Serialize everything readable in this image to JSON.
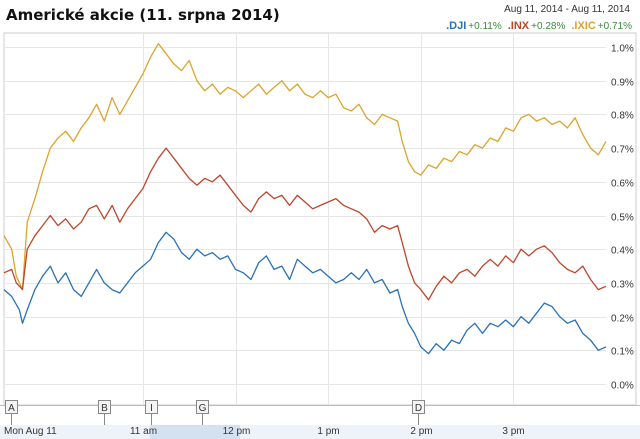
{
  "header": {
    "title": "Americké akcie (11. srpna 2014)",
    "range_start": "Aug 11, 2014",
    "range_sep": "-",
    "range_end": "Aug 11, 2014"
  },
  "chart_data": {
    "type": "line",
    "title": "Americké akcie (11. srpna 2014)",
    "xlabel": "",
    "ylabel": "",
    "x_unit": "minutes after 9:30 am",
    "xlim": [
      0,
      390
    ],
    "ylim": [
      0,
      1.0
    ],
    "grid": true,
    "legend_placement": "top-right",
    "y_ticks": [
      0.0,
      0.1,
      0.2,
      0.3,
      0.4,
      0.5,
      0.6,
      0.7,
      0.8,
      0.9,
      1.0
    ],
    "y_tick_labels": [
      "0.0%",
      "0.1%",
      "0.2%",
      "0.3%",
      "0.4%",
      "0.5%",
      "0.6%",
      "0.7%",
      "0.8%",
      "0.9%",
      "1.0%"
    ],
    "x_ticks": [
      0,
      90,
      150,
      210,
      270,
      330
    ],
    "x_tick_labels": [
      "Mon Aug 11",
      "11 am",
      "12 pm",
      "1 pm",
      "2 pm",
      "3 pm"
    ],
    "event_markers": [
      {
        "label": "A",
        "x": 0
      },
      {
        "label": "B",
        "x": 65
      },
      {
        "label": "I",
        "x": 95
      },
      {
        "label": "G",
        "x": 128
      },
      {
        "label": "D",
        "x": 268
      }
    ],
    "series": [
      {
        "name": ".DJI",
        "change": "+0.11%",
        "color": "#2a72b5",
        "x": [
          0,
          5,
          10,
          12,
          15,
          20,
          25,
          30,
          35,
          40,
          45,
          50,
          55,
          60,
          65,
          70,
          75,
          80,
          85,
          90,
          95,
          100,
          105,
          110,
          115,
          120,
          125,
          130,
          135,
          140,
          145,
          150,
          155,
          160,
          165,
          170,
          175,
          180,
          185,
          190,
          195,
          200,
          205,
          210,
          215,
          220,
          225,
          230,
          235,
          240,
          245,
          250,
          255,
          258,
          262,
          266,
          270,
          275,
          280,
          285,
          290,
          295,
          300,
          305,
          310,
          315,
          320,
          325,
          330,
          335,
          340,
          345,
          350,
          355,
          360,
          365,
          370,
          375,
          380,
          385,
          390
        ],
        "values": [
          0.28,
          0.26,
          0.22,
          0.18,
          0.22,
          0.28,
          0.32,
          0.35,
          0.3,
          0.33,
          0.28,
          0.26,
          0.3,
          0.34,
          0.3,
          0.28,
          0.27,
          0.3,
          0.33,
          0.35,
          0.37,
          0.42,
          0.45,
          0.43,
          0.39,
          0.37,
          0.4,
          0.38,
          0.39,
          0.37,
          0.38,
          0.34,
          0.33,
          0.31,
          0.36,
          0.38,
          0.34,
          0.35,
          0.31,
          0.37,
          0.35,
          0.33,
          0.34,
          0.32,
          0.3,
          0.31,
          0.33,
          0.31,
          0.34,
          0.3,
          0.31,
          0.27,
          0.28,
          0.23,
          0.18,
          0.15,
          0.11,
          0.09,
          0.12,
          0.1,
          0.13,
          0.12,
          0.16,
          0.18,
          0.15,
          0.18,
          0.17,
          0.19,
          0.17,
          0.2,
          0.18,
          0.21,
          0.24,
          0.23,
          0.2,
          0.18,
          0.19,
          0.15,
          0.13,
          0.1,
          0.11
        ]
      },
      {
        "name": ".INX",
        "change": "+0.28%",
        "color": "#c0452a",
        "x": [
          0,
          5,
          8,
          12,
          15,
          20,
          25,
          30,
          35,
          40,
          45,
          50,
          55,
          60,
          65,
          70,
          75,
          80,
          85,
          90,
          95,
          100,
          105,
          110,
          115,
          120,
          125,
          130,
          135,
          140,
          145,
          150,
          155,
          160,
          165,
          170,
          175,
          180,
          185,
          190,
          195,
          200,
          205,
          210,
          215,
          220,
          225,
          230,
          235,
          240,
          245,
          250,
          255,
          258,
          262,
          266,
          270,
          275,
          280,
          285,
          290,
          295,
          300,
          305,
          310,
          315,
          320,
          325,
          330,
          335,
          340,
          345,
          350,
          355,
          360,
          365,
          370,
          375,
          380,
          385,
          390
        ],
        "values": [
          0.33,
          0.34,
          0.3,
          0.28,
          0.4,
          0.44,
          0.47,
          0.5,
          0.47,
          0.49,
          0.46,
          0.48,
          0.52,
          0.53,
          0.49,
          0.53,
          0.48,
          0.52,
          0.55,
          0.58,
          0.63,
          0.67,
          0.7,
          0.67,
          0.64,
          0.61,
          0.59,
          0.61,
          0.6,
          0.62,
          0.59,
          0.56,
          0.53,
          0.51,
          0.55,
          0.57,
          0.55,
          0.56,
          0.53,
          0.56,
          0.54,
          0.52,
          0.53,
          0.54,
          0.55,
          0.53,
          0.52,
          0.51,
          0.49,
          0.45,
          0.47,
          0.46,
          0.47,
          0.42,
          0.35,
          0.3,
          0.28,
          0.25,
          0.29,
          0.32,
          0.3,
          0.33,
          0.34,
          0.32,
          0.35,
          0.37,
          0.35,
          0.38,
          0.36,
          0.4,
          0.38,
          0.4,
          0.41,
          0.39,
          0.36,
          0.34,
          0.33,
          0.35,
          0.31,
          0.28,
          0.29
        ]
      },
      {
        "name": ".IXIC",
        "change": "+0.71%",
        "color": "#dba42c",
        "x": [
          0,
          5,
          8,
          12,
          15,
          20,
          25,
          30,
          35,
          40,
          45,
          50,
          55,
          60,
          65,
          70,
          75,
          80,
          85,
          90,
          95,
          100,
          105,
          110,
          115,
          120,
          125,
          130,
          135,
          140,
          145,
          150,
          155,
          160,
          165,
          170,
          175,
          180,
          185,
          190,
          195,
          200,
          205,
          210,
          215,
          220,
          225,
          230,
          235,
          240,
          245,
          250,
          255,
          258,
          262,
          266,
          270,
          275,
          280,
          285,
          290,
          295,
          300,
          305,
          310,
          315,
          320,
          325,
          330,
          335,
          340,
          345,
          350,
          355,
          360,
          365,
          370,
          375,
          380,
          385,
          390
        ],
        "values": [
          0.44,
          0.4,
          0.32,
          0.28,
          0.48,
          0.55,
          0.63,
          0.7,
          0.73,
          0.75,
          0.72,
          0.76,
          0.79,
          0.83,
          0.78,
          0.85,
          0.8,
          0.84,
          0.88,
          0.92,
          0.97,
          1.01,
          0.98,
          0.95,
          0.93,
          0.96,
          0.9,
          0.87,
          0.89,
          0.86,
          0.88,
          0.87,
          0.85,
          0.87,
          0.89,
          0.86,
          0.88,
          0.9,
          0.87,
          0.89,
          0.86,
          0.85,
          0.87,
          0.85,
          0.86,
          0.82,
          0.81,
          0.83,
          0.79,
          0.77,
          0.8,
          0.79,
          0.78,
          0.72,
          0.66,
          0.63,
          0.62,
          0.65,
          0.64,
          0.67,
          0.66,
          0.69,
          0.68,
          0.71,
          0.7,
          0.73,
          0.72,
          0.76,
          0.75,
          0.79,
          0.8,
          0.78,
          0.79,
          0.77,
          0.78,
          0.76,
          0.79,
          0.74,
          0.7,
          0.68,
          0.72
        ]
      }
    ]
  }
}
